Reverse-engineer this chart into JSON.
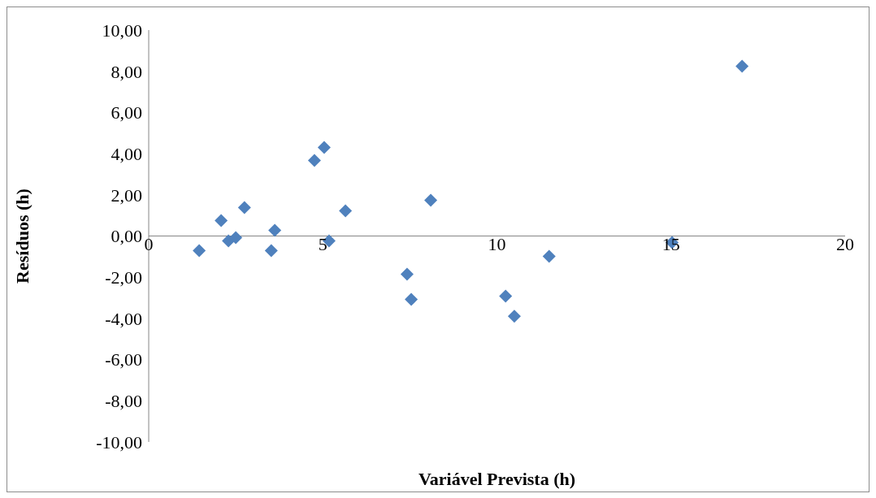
{
  "chart_data": {
    "type": "scatter",
    "xlabel": "Variável Prevista (h)",
    "ylabel": "Resíduos (h)",
    "x": [
      1.45,
      2.08,
      2.29,
      2.5,
      2.75,
      3.52,
      3.62,
      4.76,
      5.04,
      5.18,
      5.65,
      7.42,
      7.54,
      8.1,
      10.25,
      10.5,
      11.5,
      15.03,
      17.04
    ],
    "series": [
      {
        "color": "#4f81bd",
        "values": [
          -0.71,
          0.75,
          -0.24,
          -0.08,
          1.38,
          -0.71,
          0.28,
          3.67,
          4.3,
          -0.24,
          1.22,
          -1.85,
          -3.08,
          1.74,
          -2.92,
          -3.9,
          -0.99,
          -0.32,
          8.24
        ]
      }
    ],
    "xlim": [
      0,
      20
    ],
    "xticks": [
      0,
      5,
      10,
      15,
      20
    ],
    "ylim": [
      -10,
      10
    ],
    "yticks": [
      {
        "value": -10,
        "label": "-10,00"
      },
      {
        "value": -8,
        "label": "-8,00"
      },
      {
        "value": -6,
        "label": "-6,00"
      },
      {
        "value": -4,
        "label": "-4,00"
      },
      {
        "value": -2,
        "label": "-2,00"
      },
      {
        "value": 0,
        "label": "0,00"
      },
      {
        "value": 2,
        "label": "2,00"
      },
      {
        "value": 4,
        "label": "4,00"
      },
      {
        "value": 6,
        "label": "6,00"
      },
      {
        "value": 8,
        "label": "8,00"
      },
      {
        "value": 10,
        "label": "10,00"
      }
    ],
    "grid": false,
    "marker": "diamond"
  }
}
